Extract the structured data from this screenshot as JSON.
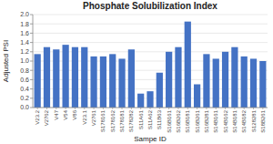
{
  "chart_data": {
    "type": "bar",
    "title": "Phosphate Solubilization Index",
    "xlabel": "Sampe ID",
    "ylabel": "Adjusted PSI",
    "categories": [
      "V23.2",
      "V2762",
      "V47",
      "V54",
      "V86",
      "V23.1",
      "V2761",
      "S178161",
      "S178162",
      "S178181",
      "S178282",
      "S11A61",
      "S11A62",
      "S11B63",
      "S16B161",
      "S16B262",
      "S16B181",
      "S16B261",
      "S16B281",
      "S14B161",
      "S14B162",
      "S14B181",
      "S14B182",
      "S128281",
      "S18B261"
    ],
    "values": [
      1.15,
      1.3,
      1.25,
      1.35,
      1.3,
      1.3,
      1.1,
      1.1,
      1.15,
      1.05,
      1.25,
      0.3,
      0.35,
      0.75,
      1.2,
      1.3,
      1.85,
      0.5,
      1.15,
      1.05,
      1.2,
      1.3,
      1.1,
      1.05,
      1.0
    ],
    "color": "#4472C4",
    "ylim": [
      0,
      2.0
    ],
    "yticks": [
      {
        "value": 0,
        "label": "0.0"
      },
      0.2,
      0.4,
      0.6,
      0.8,
      {
        "value": 1.0,
        "label": "1.0"
      },
      1.2,
      1.4,
      1.6,
      1.8,
      {
        "value": 2.0,
        "label": "2.0"
      }
    ],
    "grid": true
  }
}
